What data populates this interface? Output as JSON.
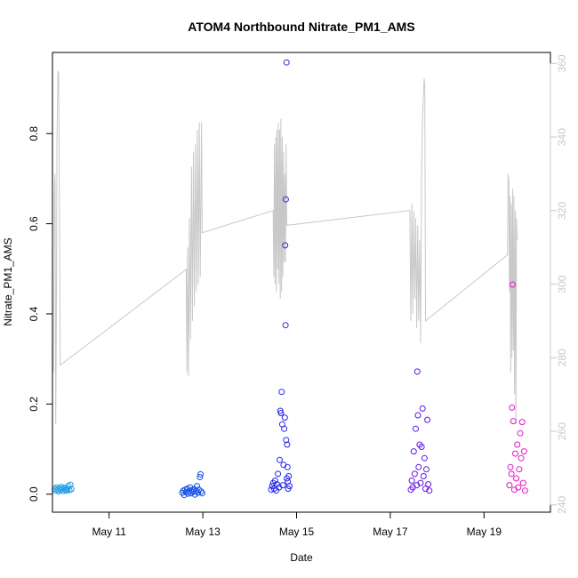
{
  "chart_data": {
    "type": "scatter",
    "title": "ATOM4 Northbound Nitrate_PM1_AMS",
    "xlabel": "Date",
    "ylabel": "Nitrate_PM1_AMS",
    "xlim": [
      "2018-05-09T19:00",
      "2018-05-20T10:00"
    ],
    "ylim": [
      -0.04,
      0.98
    ],
    "x_ticks": [
      {
        "date": "2018-05-11T00:00",
        "label": "May 11"
      },
      {
        "date": "2018-05-13T00:00",
        "label": "May 13"
      },
      {
        "date": "2018-05-15T00:00",
        "label": "May 15"
      },
      {
        "date": "2018-05-17T00:00",
        "label": "May 17"
      },
      {
        "date": "2018-05-19T00:00",
        "label": "May 19"
      }
    ],
    "y_ticks": [
      0.0,
      0.2,
      0.4,
      0.6,
      0.8
    ],
    "y2_ticks": [
      240,
      260,
      280,
      300,
      320,
      340,
      360
    ],
    "y2lim": [
      238,
      363
    ],
    "y2_color": "#c8c8c8",
    "series": [
      {
        "color": "#1e9be6",
        "points": [
          [
            "2018-05-09T20:10",
            0.012
          ],
          [
            "2018-05-09T20:40",
            0.008
          ],
          [
            "2018-05-09T21:10",
            0.015
          ],
          [
            "2018-05-09T21:40",
            0.01
          ],
          [
            "2018-05-09T22:10",
            0.006
          ],
          [
            "2018-05-09T22:40",
            0.013
          ],
          [
            "2018-05-09T23:10",
            0.009
          ],
          [
            "2018-05-09T23:40",
            0.016
          ],
          [
            "2018-05-10T00:10",
            0.011
          ],
          [
            "2018-05-10T00:40",
            0.007
          ],
          [
            "2018-05-10T01:10",
            0.014
          ],
          [
            "2018-05-10T01:40",
            0.01
          ],
          [
            "2018-05-10T02:10",
            0.008
          ],
          [
            "2018-05-10T02:40",
            0.012
          ],
          [
            "2018-05-10T03:10",
            0.018
          ],
          [
            "2018-05-10T03:40",
            0.009
          ],
          [
            "2018-05-10T04:10",
            0.021
          ],
          [
            "2018-05-10T04:40",
            0.011
          ]
        ]
      },
      {
        "color": "#1450e6",
        "points": [
          [
            "2018-05-12T13:30",
            0.003
          ],
          [
            "2018-05-12T14:00",
            0.008
          ],
          [
            "2018-05-12T14:30",
            -0.002
          ],
          [
            "2018-05-12T15:00",
            0.01
          ],
          [
            "2018-05-12T15:30",
            0.004
          ],
          [
            "2018-05-12T16:00",
            0.012
          ],
          [
            "2018-05-12T16:30",
            0.001
          ],
          [
            "2018-05-12T17:00",
            0.007
          ],
          [
            "2018-05-12T17:30",
            0.015
          ],
          [
            "2018-05-12T18:00",
            0.002
          ],
          [
            "2018-05-12T18:30",
            0.009
          ],
          [
            "2018-05-12T19:00",
            0.005
          ],
          [
            "2018-05-12T19:30",
            0.011
          ],
          [
            "2018-05-12T20:00",
            -0.001
          ],
          [
            "2018-05-12T20:30",
            0.006
          ],
          [
            "2018-05-12T21:00",
            0.018
          ],
          [
            "2018-05-12T21:30",
            0.003
          ],
          [
            "2018-05-12T22:00",
            0.01
          ],
          [
            "2018-05-12T22:30",
            0.038
          ],
          [
            "2018-05-12T22:50",
            0.044
          ],
          [
            "2018-05-12T23:10",
            0.006
          ],
          [
            "2018-05-12T23:40",
            0.002
          ]
        ]
      },
      {
        "color": "#2828e6",
        "points": [
          [
            "2018-05-14T11:00",
            0.01
          ],
          [
            "2018-05-14T11:30",
            0.018
          ],
          [
            "2018-05-14T12:00",
            0.025
          ],
          [
            "2018-05-14T12:30",
            0.012
          ],
          [
            "2018-05-14T13:00",
            0.03
          ],
          [
            "2018-05-14T13:30",
            0.008
          ],
          [
            "2018-05-14T14:00",
            0.022
          ],
          [
            "2018-05-14T14:30",
            0.045
          ],
          [
            "2018-05-14T15:00",
            0.015
          ],
          [
            "2018-05-14T15:20",
            0.076
          ],
          [
            "2018-05-14T15:40",
            0.185
          ],
          [
            "2018-05-14T16:00",
            0.18
          ],
          [
            "2018-05-14T16:20",
            0.227
          ],
          [
            "2018-05-14T16:40",
            0.155
          ],
          [
            "2018-05-14T17:00",
            0.02
          ],
          [
            "2018-05-14T17:20",
            0.065
          ],
          [
            "2018-05-14T17:40",
            0.145
          ],
          [
            "2018-05-14T18:00",
            0.17
          ],
          [
            "2018-05-14T18:10",
            0.552
          ],
          [
            "2018-05-14T18:20",
            0.375
          ],
          [
            "2018-05-14T18:30",
            0.654
          ],
          [
            "2018-05-14T18:40",
            0.12
          ],
          [
            "2018-05-14T18:50",
            0.958
          ],
          [
            "2018-05-14T19:00",
            0.035
          ],
          [
            "2018-05-14T19:10",
            0.11
          ],
          [
            "2018-05-14T19:20",
            0.06
          ],
          [
            "2018-05-14T19:30",
            0.028
          ],
          [
            "2018-05-14T19:40",
            0.012
          ],
          [
            "2018-05-14T20:00",
            0.04
          ],
          [
            "2018-05-14T20:20",
            0.018
          ]
        ]
      },
      {
        "color": "#6414e6",
        "points": [
          [
            "2018-05-17T10:30",
            0.01
          ],
          [
            "2018-05-17T11:00",
            0.03
          ],
          [
            "2018-05-17T11:30",
            0.015
          ],
          [
            "2018-05-17T12:00",
            0.095
          ],
          [
            "2018-05-17T12:30",
            0.045
          ],
          [
            "2018-05-17T13:00",
            0.145
          ],
          [
            "2018-05-17T13:30",
            0.02
          ],
          [
            "2018-05-17T13:50",
            0.272
          ],
          [
            "2018-05-17T14:10",
            0.175
          ],
          [
            "2018-05-17T14:30",
            0.06
          ],
          [
            "2018-05-17T15:00",
            0.11
          ],
          [
            "2018-05-17T15:30",
            0.025
          ],
          [
            "2018-05-17T16:00",
            0.105
          ],
          [
            "2018-05-17T16:30",
            0.19
          ],
          [
            "2018-05-17T17:00",
            0.04
          ],
          [
            "2018-05-17T17:30",
            0.08
          ],
          [
            "2018-05-17T18:00",
            0.012
          ],
          [
            "2018-05-17T18:30",
            0.055
          ],
          [
            "2018-05-17T19:00",
            0.165
          ],
          [
            "2018-05-17T19:30",
            0.022
          ],
          [
            "2018-05-17T20:00",
            0.008
          ]
        ]
      },
      {
        "color": "#e614c8",
        "points": [
          [
            "2018-05-19T13:00",
            0.02
          ],
          [
            "2018-05-19T13:30",
            0.06
          ],
          [
            "2018-05-19T14:00",
            0.045
          ],
          [
            "2018-05-19T14:20",
            0.192
          ],
          [
            "2018-05-19T14:40",
            0.465
          ],
          [
            "2018-05-19T15:00",
            0.162
          ],
          [
            "2018-05-19T15:30",
            0.01
          ],
          [
            "2018-05-19T16:00",
            0.09
          ],
          [
            "2018-05-19T16:30",
            0.035
          ],
          [
            "2018-05-19T17:00",
            0.11
          ],
          [
            "2018-05-19T17:30",
            0.015
          ],
          [
            "2018-05-19T18:00",
            0.055
          ],
          [
            "2018-05-19T18:30",
            0.135
          ],
          [
            "2018-05-19T19:00",
            0.08
          ],
          [
            "2018-05-19T19:30",
            0.16
          ],
          [
            "2018-05-19T20:00",
            0.025
          ],
          [
            "2018-05-19T20:30",
            0.095
          ],
          [
            "2018-05-19T21:00",
            0.008
          ]
        ]
      }
    ],
    "line_series": {
      "axis": "right",
      "color": "#c8c8c8",
      "points": [
        [
          "2018-05-09T19:30",
          276
        ],
        [
          "2018-05-09T20:00",
          326
        ],
        [
          "2018-05-09T20:20",
          330
        ],
        [
          "2018-05-09T20:40",
          262
        ],
        [
          "2018-05-09T21:00",
          290
        ],
        [
          "2018-05-09T21:20",
          340
        ],
        [
          "2018-05-09T21:50",
          358
        ],
        [
          "2018-05-09T22:10",
          357
        ],
        [
          "2018-05-09T23:00",
          278
        ],
        [
          "2018-05-12T15:30",
          304
        ],
        [
          "2018-05-12T15:50",
          276
        ],
        [
          "2018-05-12T16:10",
          310
        ],
        [
          "2018-05-12T16:40",
          275
        ],
        [
          "2018-05-12T17:10",
          318
        ],
        [
          "2018-05-12T17:40",
          285
        ],
        [
          "2018-05-12T18:10",
          332
        ],
        [
          "2018-05-12T18:40",
          290
        ],
        [
          "2018-05-12T19:10",
          336
        ],
        [
          "2018-05-12T19:40",
          294
        ],
        [
          "2018-05-12T20:10",
          338
        ],
        [
          "2018-05-12T20:40",
          298
        ],
        [
          "2018-05-12T21:10",
          342
        ],
        [
          "2018-05-12T21:40",
          300
        ],
        [
          "2018-05-12T22:10",
          344
        ],
        [
          "2018-05-12T22:40",
          302
        ],
        [
          "2018-05-12T23:20",
          344
        ],
        [
          "2018-05-12T23:40",
          314
        ],
        [
          "2018-05-14T12:00",
          320
        ],
        [
          "2018-05-14T12:20",
          302
        ],
        [
          "2018-05-14T12:40",
          338
        ],
        [
          "2018-05-14T13:00",
          300
        ],
        [
          "2018-05-14T13:20",
          340
        ],
        [
          "2018-05-14T13:40",
          298
        ],
        [
          "2018-05-14T14:00",
          342
        ],
        [
          "2018-05-14T14:20",
          304
        ],
        [
          "2018-05-14T14:40",
          344
        ],
        [
          "2018-05-14T15:00",
          300
        ],
        [
          "2018-05-14T15:20",
          342
        ],
        [
          "2018-05-14T15:40",
          296
        ],
        [
          "2018-05-14T16:00",
          345
        ],
        [
          "2018-05-14T16:20",
          298
        ],
        [
          "2018-05-14T16:40",
          340
        ],
        [
          "2018-05-14T17:00",
          302
        ],
        [
          "2018-05-14T17:20",
          336
        ],
        [
          "2018-05-14T17:40",
          306
        ],
        [
          "2018-05-14T18:00",
          330
        ],
        [
          "2018-05-14T18:20",
          306
        ],
        [
          "2018-05-14T18:40",
          338
        ],
        [
          "2018-05-14T19:00",
          316
        ],
        [
          "2018-05-17T10:00",
          320
        ],
        [
          "2018-05-17T10:30",
          290
        ],
        [
          "2018-05-17T11:00",
          322
        ],
        [
          "2018-05-17T11:30",
          292
        ],
        [
          "2018-05-17T12:00",
          320
        ],
        [
          "2018-05-17T12:30",
          296
        ],
        [
          "2018-05-17T13:00",
          318
        ],
        [
          "2018-05-17T13:30",
          288
        ],
        [
          "2018-05-17T14:00",
          316
        ],
        [
          "2018-05-17T14:30",
          290
        ],
        [
          "2018-05-17T15:00",
          312
        ],
        [
          "2018-05-17T15:30",
          284
        ],
        [
          "2018-05-17T16:00",
          330
        ],
        [
          "2018-05-17T16:30",
          346
        ],
        [
          "2018-05-17T17:00",
          352
        ],
        [
          "2018-05-17T17:20",
          356
        ],
        [
          "2018-05-17T17:40",
          354
        ],
        [
          "2018-05-17T18:00",
          290
        ],
        [
          "2018-05-19T12:00",
          308
        ],
        [
          "2018-05-19T12:20",
          330
        ],
        [
          "2018-05-19T12:40",
          328
        ],
        [
          "2018-05-19T13:00",
          298
        ],
        [
          "2018-05-19T13:20",
          324
        ],
        [
          "2018-05-19T13:40",
          276
        ],
        [
          "2018-05-19T14:00",
          322
        ],
        [
          "2018-05-19T14:20",
          280
        ],
        [
          "2018-05-19T14:40",
          326
        ],
        [
          "2018-05-19T15:00",
          282
        ],
        [
          "2018-05-19T15:20",
          324
        ],
        [
          "2018-05-19T15:40",
          270
        ],
        [
          "2018-05-19T16:00",
          320
        ],
        [
          "2018-05-19T16:20",
          262
        ],
        [
          "2018-05-19T16:40",
          318
        ],
        [
          "2018-05-19T17:00",
          312
        ]
      ]
    }
  }
}
